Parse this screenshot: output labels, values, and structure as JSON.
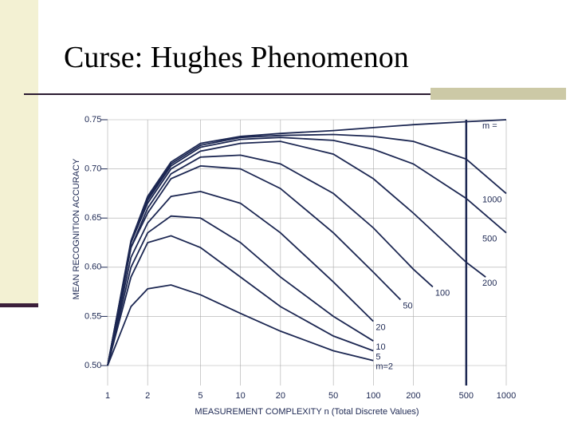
{
  "chart_data": {
    "type": "line",
    "title": "Curse: Hughes Phenomenon",
    "x_label": "MEASUREMENT COMPLEXITY n   (Total Discrete Values)",
    "y_label": "MEAN RECOGNITION ACCURACY",
    "x_scale": "log",
    "grid": true,
    "xlim": [
      1,
      1000
    ],
    "ylim": [
      0.5,
      0.75
    ],
    "xticks": [
      1,
      2,
      5,
      10,
      20,
      50,
      100,
      200,
      500,
      1000
    ],
    "yticks": [
      0.75,
      {
        "value": 0.7,
        "label": "0.70"
      },
      0.65,
      {
        "value": 0.6,
        "label": "0.60"
      },
      0.55,
      {
        "value": 0.5,
        "label": "0.50"
      }
    ],
    "reference_line_x": 500,
    "color": "#1c2752",
    "series": [
      {
        "name": "m=2",
        "x": [
          1,
          1.5,
          2,
          3,
          5,
          10,
          20,
          50,
          100
        ],
        "values": [
          0.5,
          0.56,
          0.578,
          0.582,
          0.572,
          0.553,
          0.535,
          0.515,
          0.505
        ]
      },
      {
        "name": "5",
        "x": [
          1,
          1.5,
          2,
          3,
          5,
          10,
          20,
          50,
          100
        ],
        "values": [
          0.5,
          0.59,
          0.625,
          0.632,
          0.62,
          0.59,
          0.56,
          0.53,
          0.515
        ]
      },
      {
        "name": "10",
        "x": [
          1,
          1.5,
          2,
          3,
          5,
          10,
          20,
          50,
          100
        ],
        "values": [
          0.5,
          0.6,
          0.635,
          0.652,
          0.65,
          0.625,
          0.59,
          0.55,
          0.525
        ]
      },
      {
        "name": "20",
        "x": [
          1,
          1.5,
          2,
          3,
          5,
          10,
          20,
          50,
          100
        ],
        "values": [
          0.5,
          0.61,
          0.645,
          0.672,
          0.677,
          0.665,
          0.635,
          0.585,
          0.545
        ]
      },
      {
        "name": "50",
        "x": [
          1,
          1.5,
          2,
          3,
          5,
          10,
          20,
          50,
          100,
          160
        ],
        "values": [
          0.5,
          0.62,
          0.655,
          0.69,
          0.703,
          0.7,
          0.68,
          0.635,
          0.595,
          0.567
        ]
      },
      {
        "name": "100",
        "x": [
          1,
          1.5,
          2,
          3,
          5,
          10,
          20,
          50,
          100,
          200,
          280
        ],
        "values": [
          0.5,
          0.62,
          0.66,
          0.695,
          0.712,
          0.714,
          0.705,
          0.675,
          0.64,
          0.598,
          0.58
        ]
      },
      {
        "name": "200",
        "x": [
          1,
          1.5,
          2,
          3,
          5,
          10,
          20,
          50,
          100,
          200,
          500,
          700
        ],
        "values": [
          0.5,
          0.625,
          0.665,
          0.7,
          0.718,
          0.726,
          0.728,
          0.715,
          0.69,
          0.655,
          0.605,
          0.59
        ]
      },
      {
        "name": "500",
        "x": [
          1,
          1.5,
          2,
          3,
          5,
          10,
          20,
          50,
          100,
          200,
          500,
          1000
        ],
        "values": [
          0.5,
          0.625,
          0.668,
          0.703,
          0.722,
          0.73,
          0.732,
          0.729,
          0.72,
          0.705,
          0.67,
          0.635
        ]
      },
      {
        "name": "1000",
        "x": [
          1,
          1.5,
          2,
          3,
          5,
          10,
          20,
          50,
          100,
          200,
          500,
          1000
        ],
        "values": [
          0.5,
          0.625,
          0.67,
          0.705,
          0.724,
          0.732,
          0.734,
          0.735,
          0.733,
          0.728,
          0.71,
          0.675
        ]
      },
      {
        "name": "m =",
        "x": [
          1,
          1.5,
          2,
          3,
          5,
          10,
          20,
          50,
          100,
          200,
          500,
          1000
        ],
        "values": [
          0.5,
          0.627,
          0.672,
          0.707,
          0.726,
          0.733,
          0.736,
          0.739,
          0.742,
          0.745,
          0.748,
          0.75
        ]
      }
    ]
  }
}
